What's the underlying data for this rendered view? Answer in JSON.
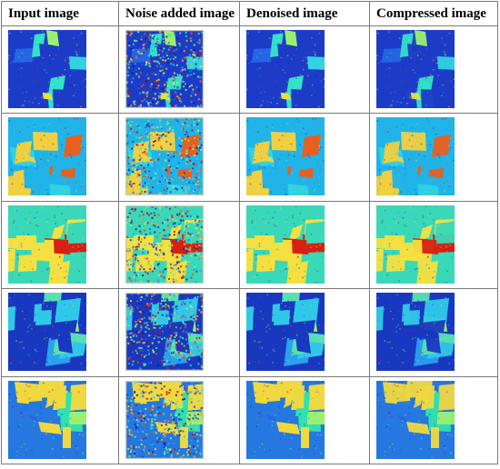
{
  "headers": [
    "Input image",
    "Noise added image",
    "Denoised image",
    "Compressed image"
  ],
  "rows": [
    {
      "scene": "scene-1",
      "base": "#1c3cc8",
      "accent": "#33e0c8",
      "hot": "#e8e040"
    },
    {
      "scene": "scene-2",
      "base": "#20b4e8",
      "accent": "#f0d040",
      "hot": "#e86020"
    },
    {
      "scene": "scene-3",
      "base": "#38d8b8",
      "accent": "#f4e040",
      "hot": "#d82010"
    },
    {
      "scene": "scene-4",
      "base": "#1838c0",
      "accent": "#30c8e8",
      "hot": "#58e0b0"
    },
    {
      "scene": "scene-5",
      "base": "#2478e0",
      "accent": "#f0d840",
      "hot": "#30e0b0"
    }
  ],
  "columns": [
    "input",
    "noise",
    "denoised",
    "compressed"
  ]
}
